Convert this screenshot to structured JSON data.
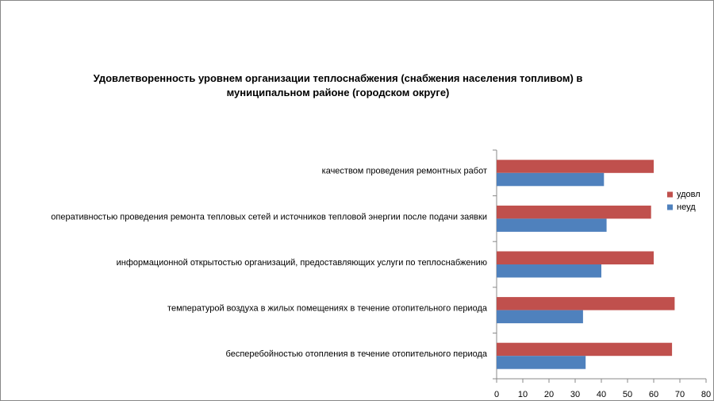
{
  "chart_data": {
    "type": "hbar",
    "title": "Удовлетворенность уровнем организации теплоснабжения (снабжения населения топливом) в муниципальном районе (городском округе)",
    "categories": [
      "качеством проведения ремонтных работ",
      "оперативностью проведения ремонта тепловых сетей и источников тепловой энергии после подачи заявки",
      "информационной открытостью организаций, предоставляющих услуги по теплоснабжению",
      "температурой воздуха в жилых помещениях в течение отопительного периода",
      "бесперебойностью отопления в течение отопительного периода"
    ],
    "series": [
      {
        "name": "удовл",
        "color": "#c0504d",
        "values": [
          60,
          59,
          60,
          68,
          67
        ]
      },
      {
        "name": "неуд",
        "color": "#4f81bd",
        "values": [
          41,
          42,
          40,
          33,
          34
        ]
      }
    ],
    "xlim": [
      0,
      80
    ],
    "xticks": [
      0,
      10,
      20,
      30,
      40,
      50,
      60,
      70,
      80
    ],
    "grid": false,
    "legend": "right"
  }
}
